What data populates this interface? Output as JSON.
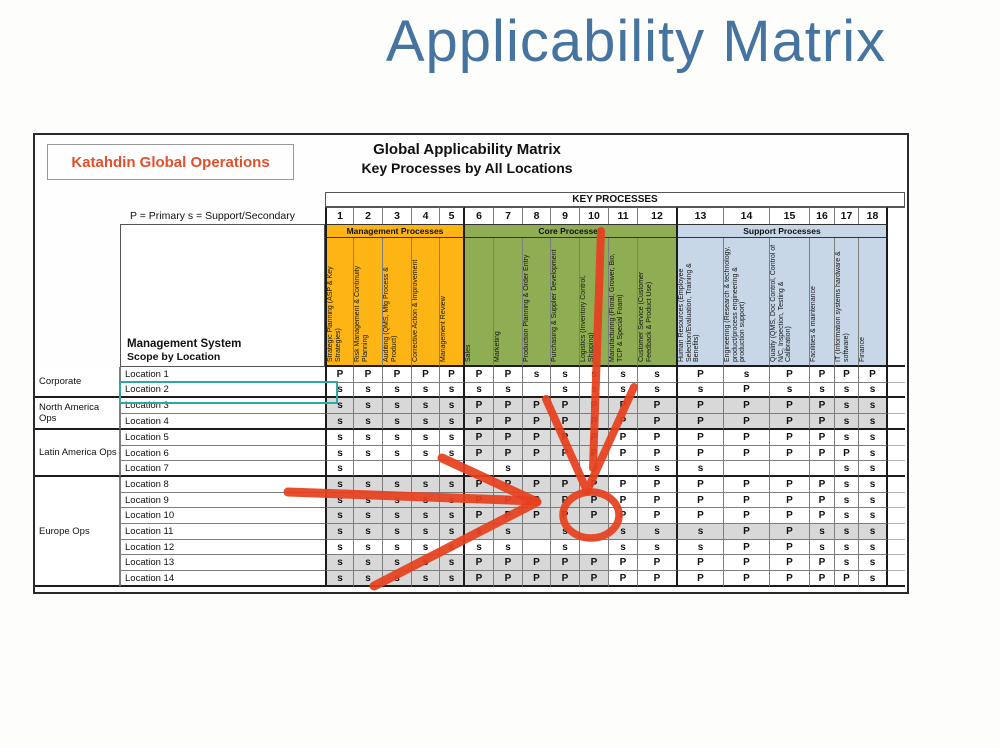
{
  "title": "Applicability Matrix",
  "slide": {
    "org_box": "Katahdin Global Operations",
    "heading_line1": "Global Applicability Matrix",
    "heading_line2": "Key Processes by All Locations",
    "legend": "P = Primary s = Support/Secondary",
    "key_processes_label": "KEY PROCESSES",
    "scope_label_line1": "Management System",
    "scope_label_line2": "Scope by Location"
  },
  "bands": [
    {
      "label": "Management Processes",
      "color": "#fcb514",
      "from": 1,
      "to": 5
    },
    {
      "label": "Core Processes",
      "color": "#8fad53",
      "from": 6,
      "to": 12
    },
    {
      "label": "Support Processes",
      "color": "#c7d7e8",
      "from": 13,
      "to": 18
    }
  ],
  "columns": [
    {
      "num": "1",
      "title": "Strategic Planning (ASP & Key Strategies)"
    },
    {
      "num": "2",
      "title": "Risk Management & Continuity Planning"
    },
    {
      "num": "3",
      "title": "Auditing (QMS, Mfg Process & Product)"
    },
    {
      "num": "4",
      "title": "Corrective Action & Improvement"
    },
    {
      "num": "5",
      "title": "Management Review"
    },
    {
      "num": "6",
      "title": "Sales"
    },
    {
      "num": "7",
      "title": "Marketing"
    },
    {
      "num": "8",
      "title": "Production Planning & Order Entry"
    },
    {
      "num": "9",
      "title": "Purchasing & Supplier Development"
    },
    {
      "num": "10",
      "title": "Logistics (Inventory Control, Shipping)"
    },
    {
      "num": "11",
      "title": "Manufacturing (Floral, Grower, Bio, TCP & Special Foam)"
    },
    {
      "num": "12",
      "title": "Customer Service (Customer Feedback & Product Use)"
    },
    {
      "num": "13",
      "title": "Human Resources (Employee Selection/Evaluation, Training & Benefits)"
    },
    {
      "num": "14",
      "title": "Engineering (Research & technology, product/process engineering & production support)"
    },
    {
      "num": "15",
      "title": "Quality (QMS, Doc Control, Control of N/C, Inspection, Testing & Calibration)"
    },
    {
      "num": "16",
      "title": "Facilities & maintenance"
    },
    {
      "num": "17",
      "title": "IT (Information systems hardware & software)"
    },
    {
      "num": "18",
      "title": "Finance"
    }
  ],
  "row_groups": [
    {
      "label": "Corporate",
      "first_row": 0,
      "last_row": 1
    },
    {
      "label": "North America Ops",
      "first_row": 2,
      "last_row": 3
    },
    {
      "label": "Latin America Ops",
      "first_row": 4,
      "last_row": 6
    },
    {
      "label": "Europe Ops",
      "first_row": 7,
      "last_row": 13
    }
  ],
  "rows": [
    {
      "label": "Location 1",
      "shade": "none",
      "cells": [
        "P",
        "P",
        "P",
        "P",
        "P",
        "P",
        "P",
        "s",
        "s",
        "s",
        "s",
        "s",
        "P",
        "s",
        "P",
        "P",
        "P",
        "P"
      ]
    },
    {
      "label": "Location 2",
      "shade": "none",
      "cells": [
        "s",
        "s",
        "s",
        "s",
        "s",
        "s",
        "s",
        "",
        "s",
        "s",
        "s",
        "s",
        "s",
        "P",
        "s",
        "s",
        "s",
        "s"
      ]
    },
    {
      "label": "Location 3",
      "shade": "full",
      "cells": [
        "s",
        "s",
        "s",
        "s",
        "s",
        "P",
        "P",
        "P",
        "P",
        "P",
        "P",
        "P",
        "P",
        "P",
        "P",
        "P",
        "s",
        "s"
      ]
    },
    {
      "label": "Location 4",
      "shade": "full",
      "cells": [
        "s",
        "s",
        "s",
        "s",
        "s",
        "P",
        "P",
        "P",
        "P",
        "P",
        "P",
        "P",
        "P",
        "P",
        "P",
        "P",
        "s",
        "s"
      ]
    },
    {
      "label": "Location 5",
      "shade": "cols6to10",
      "cells": [
        "s",
        "s",
        "s",
        "s",
        "s",
        "P",
        "P",
        "P",
        "P",
        "P",
        "P",
        "P",
        "P",
        "P",
        "P",
        "P",
        "s",
        "s"
      ]
    },
    {
      "label": "Location 6",
      "shade": "cols6to10",
      "cells": [
        "s",
        "s",
        "s",
        "s",
        "s",
        "P",
        "P",
        "P",
        "P",
        "P",
        "P",
        "P",
        "P",
        "P",
        "P",
        "P",
        "P",
        "s"
      ]
    },
    {
      "label": "Location 7",
      "shade": "none",
      "cells": [
        "s",
        "",
        "",
        "",
        "",
        "",
        "s",
        "",
        "",
        "",
        "",
        "s",
        "s",
        "",
        "",
        "",
        "s",
        "s"
      ]
    },
    {
      "label": "Location 8",
      "shade": "cols1to10",
      "cells": [
        "s",
        "s",
        "s",
        "s",
        "s",
        "P",
        "P",
        "P",
        "P",
        "P",
        "P",
        "P",
        "P",
        "P",
        "P",
        "P",
        "s",
        "s"
      ]
    },
    {
      "label": "Location 9",
      "shade": "cols1to10",
      "cells": [
        "s",
        "s",
        "s",
        "s",
        "s",
        "P",
        "P",
        "P",
        "P",
        "P",
        "P",
        "P",
        "P",
        "P",
        "P",
        "P",
        "s",
        "s"
      ]
    },
    {
      "label": "Location 10",
      "shade": "cols1to10",
      "cells": [
        "s",
        "s",
        "s",
        "s",
        "s",
        "P",
        "P",
        "P",
        "P",
        "P",
        "P",
        "P",
        "P",
        "P",
        "P",
        "P",
        "s",
        "s"
      ]
    },
    {
      "label": "Location 11",
      "shade": "full",
      "cells": [
        "s",
        "s",
        "s",
        "s",
        "s",
        "s",
        "s",
        "",
        "s",
        "",
        "s",
        "s",
        "s",
        "P",
        "P",
        "s",
        "s",
        "s"
      ]
    },
    {
      "label": "Location 12",
      "shade": "none",
      "cells": [
        "s",
        "s",
        "s",
        "s",
        "s",
        "s",
        "s",
        "",
        "s",
        "",
        "s",
        "s",
        "s",
        "P",
        "P",
        "s",
        "s",
        "s"
      ]
    },
    {
      "label": "Location 13",
      "shade": "cols1to10",
      "cells": [
        "s",
        "s",
        "s",
        "s",
        "s",
        "P",
        "P",
        "P",
        "P",
        "P",
        "P",
        "P",
        "P",
        "P",
        "P",
        "P",
        "s",
        "s"
      ]
    },
    {
      "label": "Location 14",
      "shade": "cols1to10",
      "cells": [
        "s",
        "s",
        "s",
        "s",
        "s",
        "P",
        "P",
        "P",
        "P",
        "P",
        "P",
        "P",
        "P",
        "P",
        "P",
        "P",
        "P",
        "s"
      ]
    }
  ],
  "annotations": {
    "marker_color": "#e6401e",
    "selection_color": "#2ea7a5",
    "selected_row_label": "Location 2",
    "circled_cell": {
      "row": "Location 10",
      "col": "10",
      "value": "P"
    }
  }
}
